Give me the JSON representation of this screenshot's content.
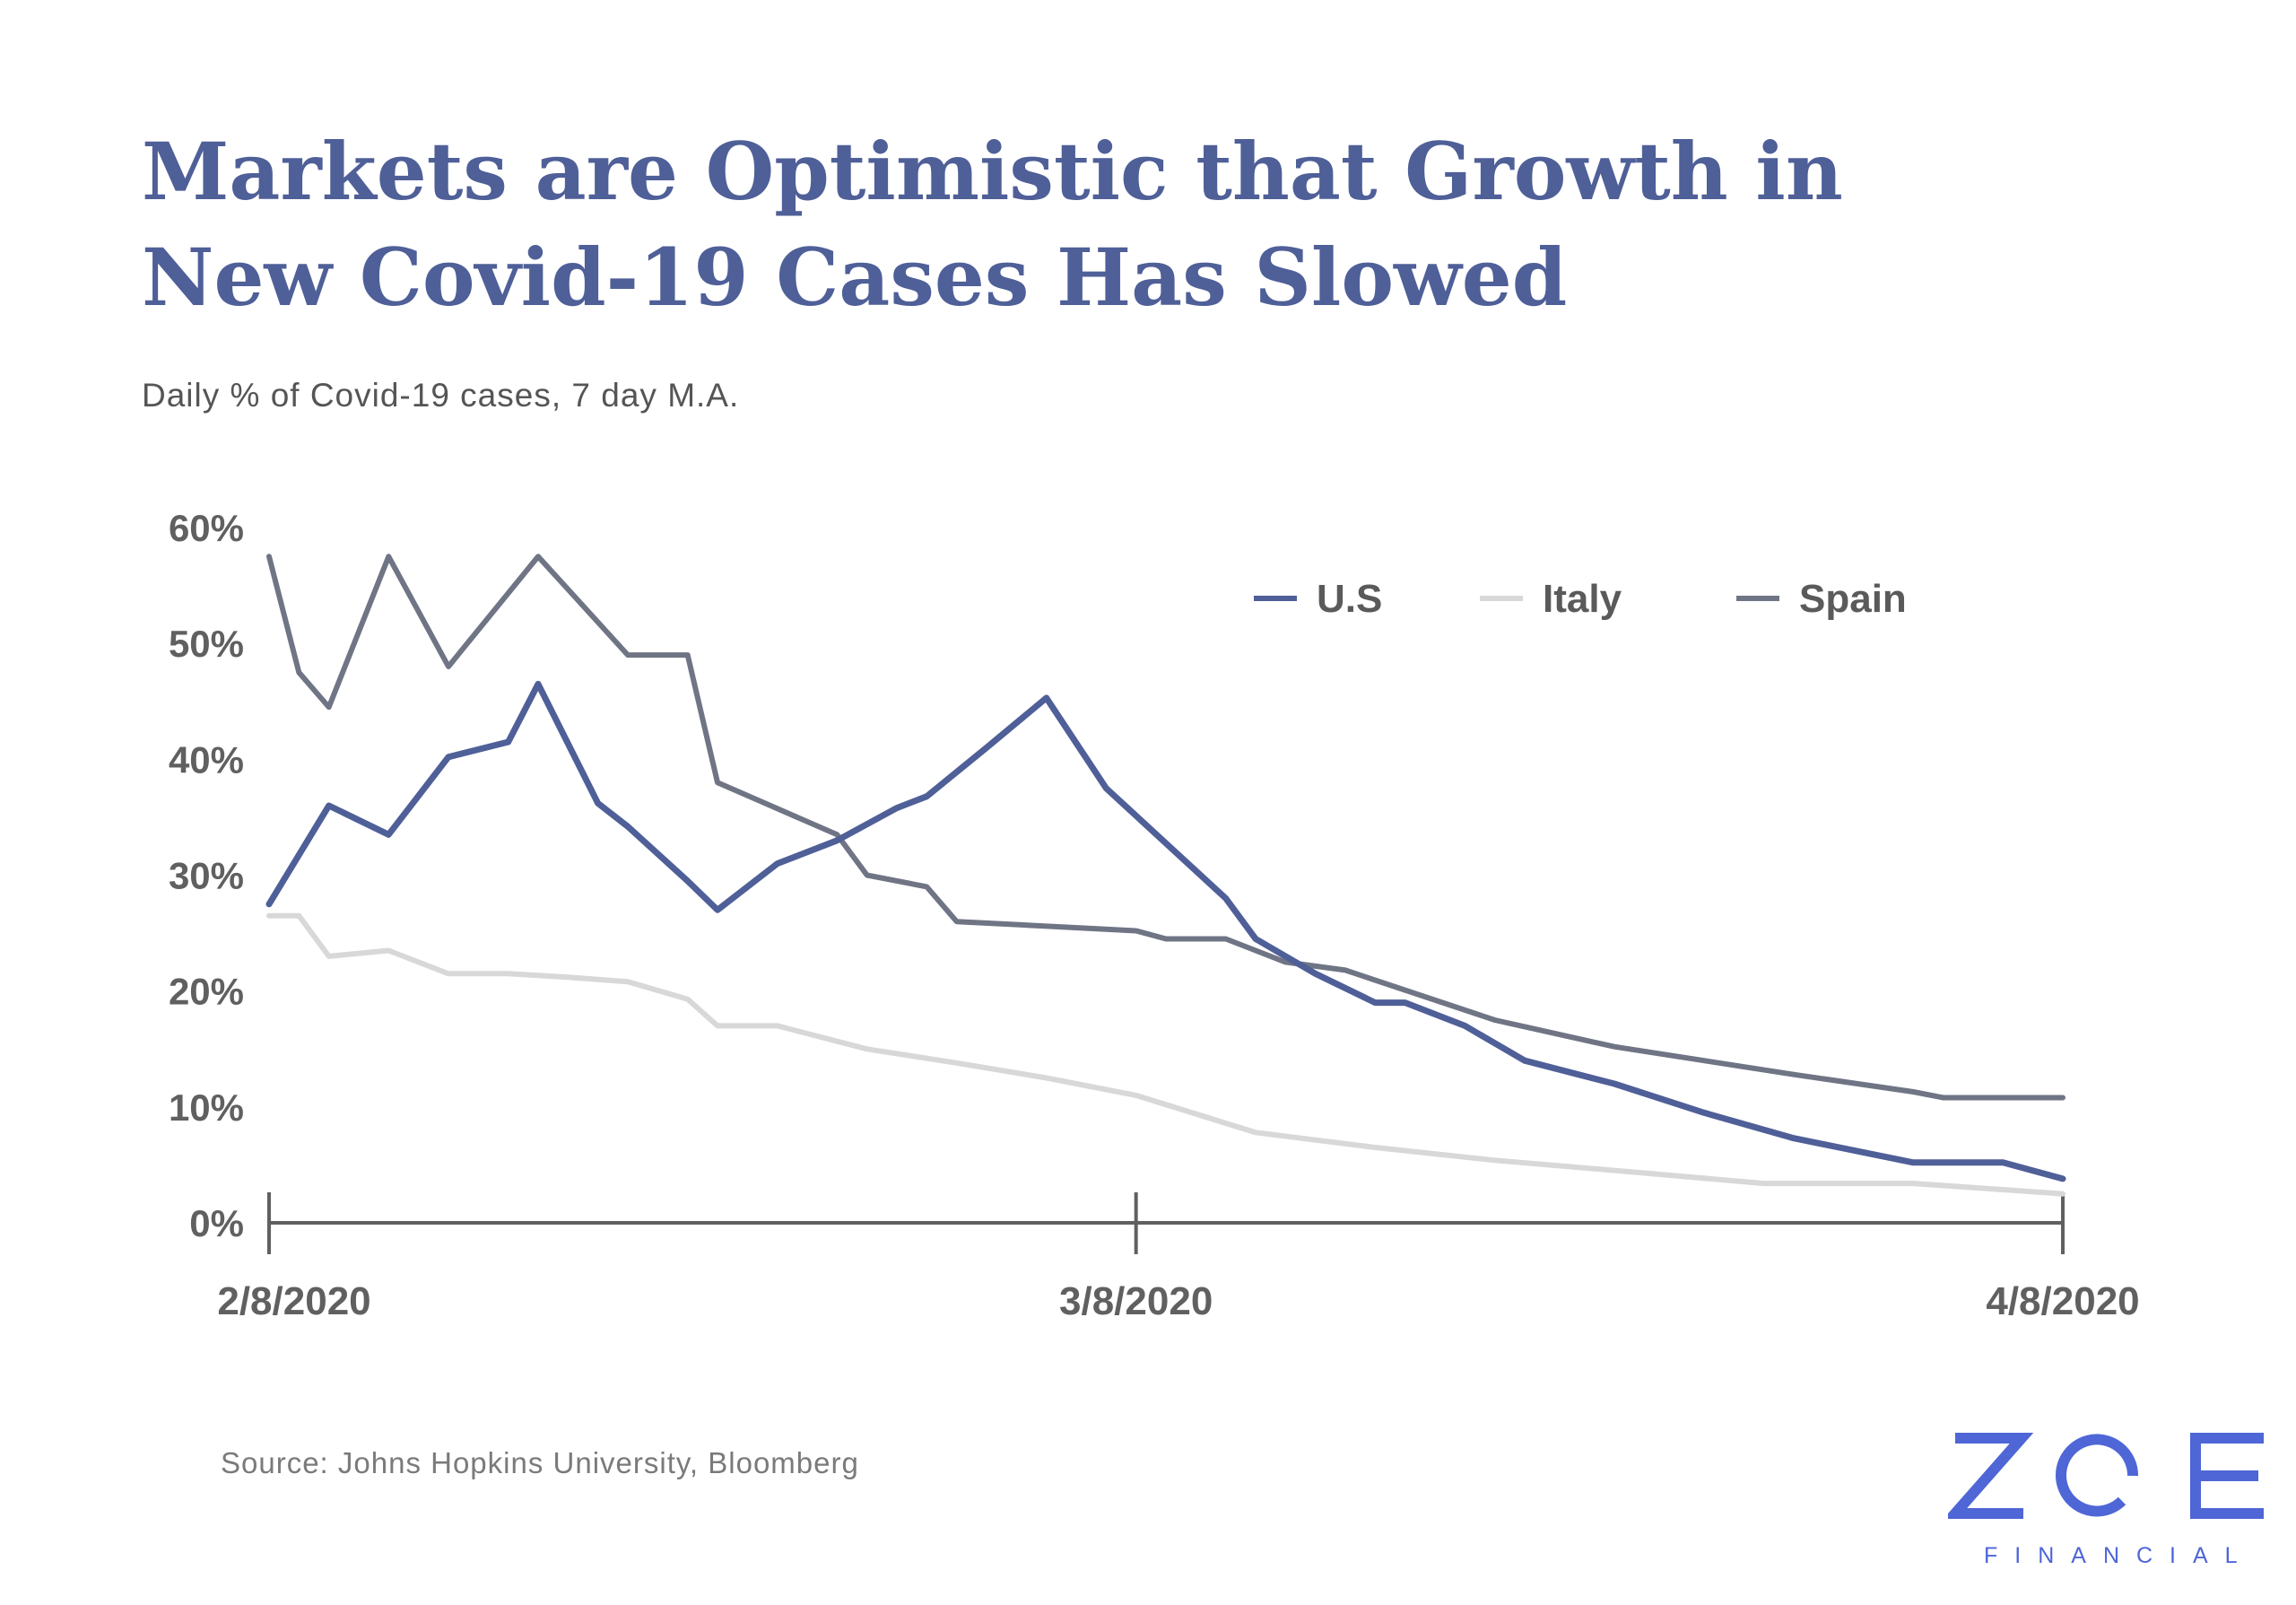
{
  "title_lines": [
    "Markets are Optimistic that Growth in",
    "New Covid-19 Cases Has Slowed"
  ],
  "subtitle": "Daily % of Covid-19 cases, 7 day M.A.",
  "source": "Source: Johns Hopkins University, Bloomberg",
  "logo": {
    "word": "ZOE",
    "sub": "FINANCIAL",
    "color": "#4e66d6"
  },
  "chart_data": {
    "type": "line",
    "title": "Markets are Optimistic that Growth in New Covid-19 Cases Has Slowed",
    "ylabel": "Daily % of Covid-19 cases, 7 day M.A.",
    "xlabel": "",
    "ylim": [
      0,
      60
    ],
    "y_ticks": [
      0,
      10,
      20,
      30,
      40,
      50,
      60
    ],
    "y_tick_labels": [
      "0%",
      "10%",
      "20%",
      "30%",
      "40%",
      "50%",
      "60%"
    ],
    "xlim": [
      "2020-02-08",
      "2020-04-08"
    ],
    "x_ticks": [
      "2020-02-08",
      "2020-03-08",
      "2020-04-08"
    ],
    "x_tick_labels": [
      "2/8/2020",
      "3/8/2020",
      "4/8/2020"
    ],
    "grid": false,
    "legend_position": "top-right",
    "series": [
      {
        "name": "U.S",
        "color": "#4f5f98",
        "points": [
          [
            "2020-02-08",
            27.5
          ],
          [
            "2020-02-10",
            36
          ],
          [
            "2020-02-12",
            33.5
          ],
          [
            "2020-02-14",
            40.2
          ],
          [
            "2020-02-16",
            41.5
          ],
          [
            "2020-02-17",
            46.5
          ],
          [
            "2020-02-19",
            36.2
          ],
          [
            "2020-02-20",
            34.2
          ],
          [
            "2020-02-22",
            29.5
          ],
          [
            "2020-02-23",
            27
          ],
          [
            "2020-02-25",
            31
          ],
          [
            "2020-02-27",
            33
          ],
          [
            "2020-02-29",
            35.8
          ],
          [
            "2020-03-01",
            36.8
          ],
          [
            "2020-03-03",
            41
          ],
          [
            "2020-03-05",
            45.3
          ],
          [
            "2020-03-07",
            37.5
          ],
          [
            "2020-03-11",
            28
          ],
          [
            "2020-03-12",
            24.5
          ],
          [
            "2020-03-14",
            21.5
          ],
          [
            "2020-03-16",
            19
          ],
          [
            "2020-03-17",
            19
          ],
          [
            "2020-03-19",
            17
          ],
          [
            "2020-03-21",
            14
          ],
          [
            "2020-03-24",
            12
          ],
          [
            "2020-03-27",
            9.5
          ],
          [
            "2020-03-30",
            7.3
          ],
          [
            "2020-04-03",
            5.2
          ],
          [
            "2020-04-06",
            5.2
          ],
          [
            "2020-04-08",
            3.8
          ]
        ]
      },
      {
        "name": "Italy",
        "color": "#d8d8d8",
        "points": [
          [
            "2020-02-08",
            26.5
          ],
          [
            "2020-02-09",
            26.5
          ],
          [
            "2020-02-10",
            23
          ],
          [
            "2020-02-12",
            23.5
          ],
          [
            "2020-02-14",
            21.5
          ],
          [
            "2020-02-16",
            21.5
          ],
          [
            "2020-02-18",
            21.2
          ],
          [
            "2020-02-20",
            20.8
          ],
          [
            "2020-02-22",
            19.3
          ],
          [
            "2020-02-23",
            17
          ],
          [
            "2020-02-25",
            17
          ],
          [
            "2020-02-28",
            15
          ],
          [
            "2020-03-02",
            13.8
          ],
          [
            "2020-03-05",
            12.5
          ],
          [
            "2020-03-08",
            11
          ],
          [
            "2020-03-12",
            7.8
          ],
          [
            "2020-03-16",
            6.5
          ],
          [
            "2020-03-20",
            5.4
          ],
          [
            "2020-03-25",
            4.3
          ],
          [
            "2020-03-29",
            3.4
          ],
          [
            "2020-04-03",
            3.4
          ],
          [
            "2020-04-08",
            2.5
          ]
        ]
      },
      {
        "name": "Spain",
        "color": "#707585",
        "points": [
          [
            "2020-02-08",
            57.5
          ],
          [
            "2020-02-09",
            47.5
          ],
          [
            "2020-02-10",
            44.5
          ],
          [
            "2020-02-12",
            57.5
          ],
          [
            "2020-02-14",
            48
          ],
          [
            "2020-02-17",
            57.5
          ],
          [
            "2020-02-20",
            49
          ],
          [
            "2020-02-22",
            49
          ],
          [
            "2020-02-23",
            38
          ],
          [
            "2020-02-27",
            33.5
          ],
          [
            "2020-02-28",
            30
          ],
          [
            "2020-03-01",
            29
          ],
          [
            "2020-03-02",
            26
          ],
          [
            "2020-03-08",
            25.2
          ],
          [
            "2020-03-09",
            24.5
          ],
          [
            "2020-03-11",
            24.5
          ],
          [
            "2020-03-13",
            22.5
          ],
          [
            "2020-03-15",
            21.8
          ],
          [
            "2020-03-20",
            17.5
          ],
          [
            "2020-03-24",
            15.2
          ],
          [
            "2020-03-27",
            14
          ],
          [
            "2020-03-30",
            12.8
          ],
          [
            "2020-04-03",
            11.3
          ],
          [
            "2020-04-04",
            10.8
          ],
          [
            "2020-04-08",
            10.8
          ]
        ]
      }
    ]
  }
}
